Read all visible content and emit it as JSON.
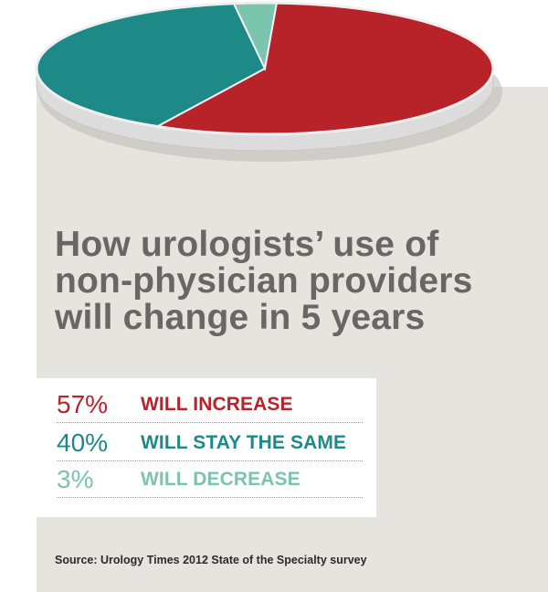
{
  "title_lines": [
    "How urologists’ use of",
    "non-physician providers",
    "will change in 5 years"
  ],
  "chart_data": {
    "type": "pie",
    "title": "How urologists’ use of non-physician providers will change in 5 years",
    "slices": [
      {
        "label": "WILL INCREASE",
        "value": 57,
        "value_label": "57%",
        "color": "#b8232a"
      },
      {
        "label": "WILL STAY THE SAME",
        "value": 40,
        "value_label": "40%",
        "color": "#1d8a88"
      },
      {
        "label": "WILL DECREASE",
        "value": 3,
        "value_label": "3%",
        "color": "#7bc4ad"
      }
    ]
  },
  "source": "Source: Urology Times 2012 State of the Specialty survey",
  "colors": {
    "panel": "#e6e4df",
    "title": "#6a6663",
    "rim": "#dcdcdc",
    "increase": "#b8232a",
    "same": "#1d8a88",
    "decrease": "#7bc4ad"
  }
}
